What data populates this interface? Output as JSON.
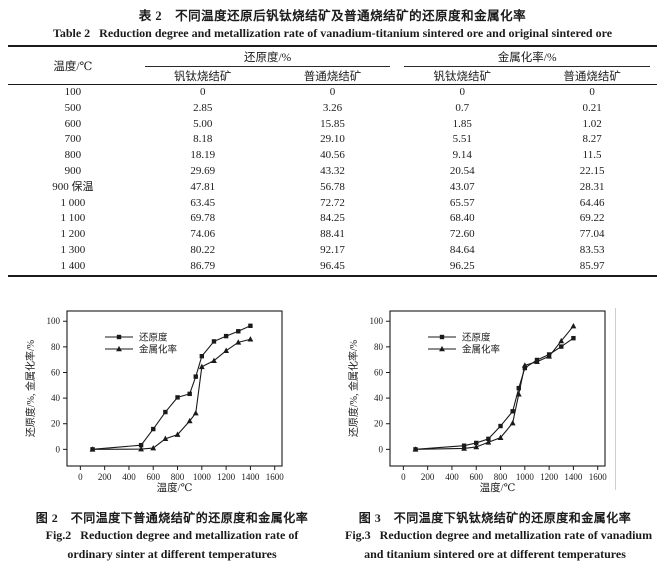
{
  "page": {
    "title_zh": "表 2　不同温度还原后钒钛烧结矿及普通烧结矿的还原度和金属化率",
    "title_en": "Table 2   Reduction degree and metallization rate of vanadium-titanium sintered ore and original sintered ore"
  },
  "table": {
    "temp_header": "温度/℃",
    "groups": [
      {
        "label": "还原度/%",
        "sub": [
          "钒钛烧结矿",
          "普通烧结矿"
        ]
      },
      {
        "label": "金属化率/%",
        "sub": [
          "钒钛烧结矿",
          "普通烧结矿"
        ]
      }
    ],
    "rows": [
      [
        "100",
        "0",
        "0",
        "0",
        "0"
      ],
      [
        "500",
        "2.85",
        "3.26",
        "0.7",
        "0.21"
      ],
      [
        "600",
        "5.00",
        "15.85",
        "1.85",
        "1.02"
      ],
      [
        "700",
        "8.18",
        "29.10",
        "5.51",
        "8.27"
      ],
      [
        "800",
        "18.19",
        "40.56",
        "9.14",
        "11.5"
      ],
      [
        "900",
        "29.69",
        "43.32",
        "20.54",
        "22.15"
      ],
      [
        "900 保温",
        "47.81",
        "56.78",
        "43.07",
        "28.31"
      ],
      [
        "1 000",
        "63.45",
        "72.72",
        "65.57",
        "64.46"
      ],
      [
        "1 100",
        "69.78",
        "84.25",
        "68.40",
        "69.22"
      ],
      [
        "1 200",
        "74.06",
        "88.41",
        "72.60",
        "77.04"
      ],
      [
        "1 300",
        "80.22",
        "92.17",
        "84.64",
        "83.53"
      ],
      [
        "1 400",
        "86.79",
        "96.45",
        "96.25",
        "85.97"
      ]
    ]
  },
  "chart_data": [
    {
      "type": "line",
      "x": [
        100,
        500,
        600,
        700,
        800,
        900,
        950,
        1000,
        1100,
        1200,
        1300,
        1400
      ],
      "series": [
        {
          "name": "还原度",
          "marker": "square",
          "values": [
            0,
            3.26,
            15.85,
            29.1,
            40.56,
            43.32,
            56.78,
            72.72,
            84.25,
            88.41,
            92.17,
            96.45
          ]
        },
        {
          "name": "金属化率",
          "marker": "triangle",
          "values": [
            0,
            0.21,
            1.02,
            8.27,
            11.5,
            22.15,
            28.31,
            64.46,
            69.22,
            77.04,
            83.53,
            85.97
          ]
        }
      ],
      "xlabel": "温度/℃",
      "ylabel": "还原度/%, 金属化率/%",
      "xlim": [
        -110,
        1660
      ],
      "ylim": [
        -13,
        108
      ],
      "xticks": [
        0,
        200,
        400,
        600,
        800,
        1000,
        1200,
        1400,
        1600
      ],
      "yticks": [
        0,
        20,
        40,
        60,
        80,
        100
      ],
      "grid": false,
      "legend_position": "upper-left",
      "line_color": "#1a1a1a",
      "caption_zh": "图 2　不同温度下普通烧结矿的还原度和金属化率",
      "caption_en": [
        "Fig.2   Reduction degree and metallization rate of",
        "ordinary sinter at different temperatures"
      ]
    },
    {
      "type": "line",
      "x": [
        100,
        500,
        600,
        700,
        800,
        900,
        950,
        1000,
        1100,
        1200,
        1300,
        1400
      ],
      "series": [
        {
          "name": "还原度",
          "marker": "square",
          "values": [
            0,
            2.85,
            5.0,
            8.18,
            18.19,
            29.69,
            47.81,
            63.45,
            69.78,
            74.06,
            80.22,
            86.79
          ]
        },
        {
          "name": "金属化率",
          "marker": "triangle",
          "values": [
            0,
            0.7,
            1.85,
            5.51,
            9.14,
            20.54,
            43.07,
            65.57,
            68.4,
            72.6,
            84.64,
            96.25
          ]
        }
      ],
      "xlabel": "温度/℃",
      "ylabel": "还原度/%, 金属化率/%",
      "xlim": [
        -110,
        1660
      ],
      "ylim": [
        -13,
        108
      ],
      "xticks": [
        0,
        200,
        400,
        600,
        800,
        1000,
        1200,
        1400,
        1600
      ],
      "yticks": [
        0,
        20,
        40,
        60,
        80,
        100
      ],
      "grid": false,
      "legend_position": "upper-left",
      "line_color": "#1a1a1a",
      "caption_zh": "图 3　不同温度下钒钛烧结矿的还原度和金属化率",
      "caption_en": [
        "Fig.3   Reduction degree and metallization rate of vanadium",
        "and titanium sintered ore at different temperatures"
      ]
    }
  ]
}
